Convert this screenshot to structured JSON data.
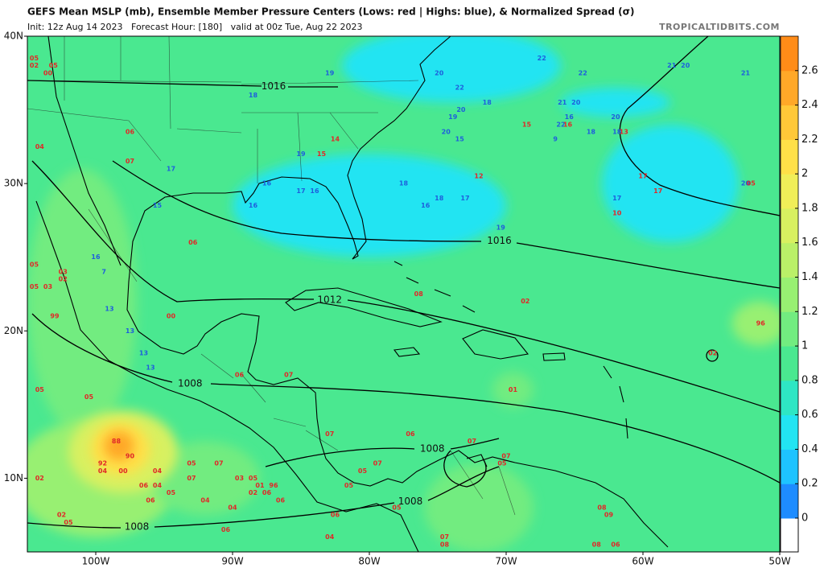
{
  "header": {
    "title": "GEFS Mean MSLP (mb), Ensemble Member Pressure Centers (Lows: red | Highs: blue), & Normalized Spread (σ)",
    "subtitle": "Init: 12z Aug 14 2023   Forecast Hour: [180]   valid at 00z Tue, Aug 22 2023",
    "credit": "TROPICALTIDBITS.COM"
  },
  "map": {
    "xlim": [
      -105,
      -50
    ],
    "ylim": [
      5,
      40
    ],
    "xticks": [
      {
        "value": -100,
        "label": "100W"
      },
      {
        "value": -90,
        "label": "90W"
      },
      {
        "value": -80,
        "label": "80W"
      },
      {
        "value": -70,
        "label": "70W"
      },
      {
        "value": -60,
        "label": "60W"
      },
      {
        "value": -50,
        "label": "50W"
      }
    ],
    "yticks": [
      {
        "value": 10,
        "label": "10N"
      },
      {
        "value": 20,
        "label": "20N"
      },
      {
        "value": 30,
        "label": "30N"
      },
      {
        "value": 40,
        "label": "40N"
      }
    ],
    "background_spread": 0.8,
    "spread_areas": [
      {
        "lon": -80,
        "lat": 28.5,
        "rx": 10,
        "ry": 3.5,
        "value": 0.5
      },
      {
        "lon": -74,
        "lat": 38,
        "rx": 8,
        "ry": 2.5,
        "value": 0.5
      },
      {
        "lon": -62,
        "lat": 35.5,
        "rx": 4,
        "ry": 1,
        "value": 0.5
      },
      {
        "lon": -58,
        "lat": 30,
        "rx": 5,
        "ry": 4,
        "value": 0.5
      },
      {
        "lon": -101,
        "lat": 22,
        "rx": 4,
        "ry": 9,
        "value": 1.0
      },
      {
        "lon": -100,
        "lat": 10,
        "rx": 6,
        "ry": 4,
        "value": 1.2
      },
      {
        "lon": -92,
        "lat": 10,
        "rx": 4,
        "ry": 2.5,
        "value": 1.0
      },
      {
        "lon": -98,
        "lat": 11.8,
        "rx": 4,
        "ry": 2.8,
        "value": 1.6
      },
      {
        "lon": -98.2,
        "lat": 12,
        "rx": 2.2,
        "ry": 1.8,
        "value": 2.0
      },
      {
        "lon": -98.3,
        "lat": 12.2,
        "rx": 1.1,
        "ry": 1,
        "value": 2.4
      },
      {
        "lon": -51.5,
        "lat": 20.5,
        "rx": 2,
        "ry": 1.5,
        "value": 1.2
      },
      {
        "lon": -72,
        "lat": 8,
        "rx": 4,
        "ry": 3,
        "value": 1.0
      },
      {
        "lon": -69.5,
        "lat": 16,
        "rx": 1.5,
        "ry": 1.2,
        "value": 1.0
      }
    ],
    "isobar_labels": [
      {
        "label": 1016,
        "lon": -87.0,
        "lat": 36.6
      },
      {
        "label": 1016,
        "lon": -70.5,
        "lat": 26.1
      },
      {
        "label": 1012,
        "lon": -82.9,
        "lat": 22.1
      },
      {
        "label": 1008,
        "lon": -93.1,
        "lat": 16.4
      },
      {
        "label": 1008,
        "lon": -75.4,
        "lat": 12.0
      },
      {
        "label": 1008,
        "lon": -77.0,
        "lat": 8.4
      },
      {
        "label": 1008,
        "lon": -97.0,
        "lat": 6.7
      }
    ],
    "high_color": "#1e5fdc",
    "low_color": "#e02828",
    "highs": [
      [
        -67.4,
        38.5,
        "22"
      ],
      [
        -64.4,
        37.5,
        "22"
      ],
      [
        -57.9,
        38.0,
        "21"
      ],
      [
        -56.9,
        38.0,
        "20"
      ],
      [
        -52.5,
        37.5,
        "21"
      ],
      [
        -74.9,
        37.5,
        "20"
      ],
      [
        -82.9,
        37.5,
        "19"
      ],
      [
        -88.5,
        36.0,
        "18"
      ],
      [
        -73.4,
        36.5,
        "22"
      ],
      [
        -71.4,
        35.5,
        "18"
      ],
      [
        -73.3,
        35.0,
        "20"
      ],
      [
        -73.9,
        34.5,
        "19"
      ],
      [
        -74.4,
        33.5,
        "20"
      ],
      [
        -73.4,
        33.0,
        "15"
      ],
      [
        -65.9,
        35.5,
        "21"
      ],
      [
        -64.9,
        35.5,
        "20"
      ],
      [
        -65.4,
        34.5,
        "16"
      ],
      [
        -66.0,
        34.0,
        "22"
      ],
      [
        -63.8,
        33.5,
        "18"
      ],
      [
        -66.4,
        33.0,
        "9"
      ],
      [
        -62.0,
        34.5,
        "20"
      ],
      [
        -61.9,
        33.5,
        "18"
      ],
      [
        -85.0,
        32.0,
        "19"
      ],
      [
        -94.5,
        31.0,
        "17"
      ],
      [
        -87.5,
        30.0,
        "16"
      ],
      [
        -85.0,
        29.5,
        "17"
      ],
      [
        -84.0,
        29.5,
        "16"
      ],
      [
        -88.5,
        28.5,
        "16"
      ],
      [
        -95.5,
        28.5,
        "15"
      ],
      [
        -77.5,
        30.0,
        "18"
      ],
      [
        -74.9,
        29.0,
        "18"
      ],
      [
        -73.0,
        29.0,
        "17"
      ],
      [
        -75.9,
        28.5,
        "16"
      ],
      [
        -70.4,
        27.0,
        "19"
      ],
      [
        -61.9,
        29.0,
        "17"
      ],
      [
        -100.0,
        25.0,
        "16"
      ],
      [
        -99.4,
        24.0,
        "7"
      ],
      [
        -99.0,
        21.5,
        "13"
      ],
      [
        -97.5,
        20.0,
        "13"
      ],
      [
        -96.5,
        18.5,
        "13"
      ],
      [
        -96.0,
        17.5,
        "13"
      ],
      [
        -52.5,
        30.0,
        "20"
      ]
    ],
    "lows": [
      [
        -104.5,
        38.5,
        "05"
      ],
      [
        -104.5,
        38.0,
        "02"
      ],
      [
        -103.1,
        38.0,
        "05"
      ],
      [
        -103.5,
        37.5,
        "00"
      ],
      [
        -104.1,
        32.5,
        "04"
      ],
      [
        -97.5,
        33.5,
        "06"
      ],
      [
        -97.5,
        31.5,
        "07"
      ],
      [
        -82.5,
        33.0,
        "14"
      ],
      [
        -83.5,
        32.0,
        "15"
      ],
      [
        -72.0,
        30.5,
        "12"
      ],
      [
        -68.5,
        34.0,
        "15"
      ],
      [
        -65.5,
        34.0,
        "16"
      ],
      [
        -61.4,
        33.5,
        "13"
      ],
      [
        -60.0,
        30.5,
        "17"
      ],
      [
        -58.9,
        29.5,
        "17"
      ],
      [
        -61.9,
        28.0,
        "10"
      ],
      [
        -52.1,
        30.0,
        "05"
      ],
      [
        -92.9,
        26.0,
        "06"
      ],
      [
        -104.5,
        24.5,
        "05"
      ],
      [
        -102.4,
        24.0,
        "03"
      ],
      [
        -102.4,
        23.5,
        "02"
      ],
      [
        -104.5,
        23.0,
        "05"
      ],
      [
        -103.5,
        23.0,
        "03"
      ],
      [
        -76.4,
        22.5,
        "08"
      ],
      [
        -68.6,
        22.0,
        "02"
      ],
      [
        -94.5,
        21.0,
        "00"
      ],
      [
        -103.0,
        21.0,
        "99"
      ],
      [
        -51.4,
        20.5,
        "96"
      ],
      [
        -54.9,
        18.5,
        "02"
      ],
      [
        -85.9,
        17.0,
        "07"
      ],
      [
        -89.5,
        17.0,
        "06"
      ],
      [
        -69.5,
        16.0,
        "01"
      ],
      [
        -104.1,
        16.0,
        "05"
      ],
      [
        -100.5,
        15.5,
        "05"
      ],
      [
        -98.5,
        12.5,
        "88"
      ],
      [
        -97.5,
        11.5,
        "90"
      ],
      [
        -99.5,
        11.0,
        "92"
      ],
      [
        -99.5,
        10.5,
        "04"
      ],
      [
        -98.0,
        10.5,
        "00"
      ],
      [
        -95.5,
        10.5,
        "04"
      ],
      [
        -93.0,
        11.0,
        "05"
      ],
      [
        -91.0,
        11.0,
        "07"
      ],
      [
        -82.9,
        13.0,
        "07"
      ],
      [
        -77.0,
        13.0,
        "06"
      ],
      [
        -79.4,
        11.0,
        "07"
      ],
      [
        -80.5,
        10.5,
        "05"
      ],
      [
        -72.5,
        12.5,
        "07"
      ],
      [
        -70.0,
        11.5,
        "07"
      ],
      [
        -70.3,
        11.0,
        "05"
      ],
      [
        -104.1,
        10.0,
        "02"
      ],
      [
        -96.5,
        9.5,
        "06"
      ],
      [
        -95.5,
        9.5,
        "04"
      ],
      [
        -94.5,
        9.0,
        "05"
      ],
      [
        -93.0,
        10.0,
        "07"
      ],
      [
        -89.5,
        10.0,
        "03"
      ],
      [
        -88.5,
        10.0,
        "05"
      ],
      [
        -88.0,
        9.5,
        "01"
      ],
      [
        -87.0,
        9.5,
        "96"
      ],
      [
        -88.5,
        9.0,
        "02"
      ],
      [
        -87.5,
        9.0,
        "06"
      ],
      [
        -81.5,
        9.5,
        "05"
      ],
      [
        -96.0,
        8.5,
        "06"
      ],
      [
        -92.0,
        8.5,
        "04"
      ],
      [
        -86.5,
        8.5,
        "06"
      ],
      [
        -90.0,
        8.0,
        "04"
      ],
      [
        -82.5,
        7.5,
        "06"
      ],
      [
        -78.0,
        8.0,
        "05"
      ],
      [
        -102.5,
        7.5,
        "02"
      ],
      [
        -102.0,
        7.0,
        "05"
      ],
      [
        -63.0,
        8.0,
        "08"
      ],
      [
        -62.5,
        7.5,
        "09"
      ],
      [
        -90.5,
        6.5,
        "06"
      ],
      [
        -82.9,
        6.0,
        "04"
      ],
      [
        -74.5,
        6.0,
        "07"
      ],
      [
        -74.5,
        5.5,
        "08"
      ],
      [
        -63.4,
        5.5,
        "08"
      ],
      [
        -62.0,
        5.5,
        "06"
      ]
    ]
  },
  "colorbar": {
    "clim": [
      0,
      2.8
    ],
    "ticks": [
      0,
      0.2,
      0.4,
      0.6,
      0.8,
      1,
      1.2,
      1.4,
      1.6,
      1.8,
      2,
      2.2,
      2.4,
      2.6
    ],
    "colors": [
      "#1e8cff",
      "#1ec3ff",
      "#22e4f2",
      "#2ee6c4",
      "#4ae890",
      "#72ec80",
      "#98f072",
      "#baf068",
      "#d8f060",
      "#f0ee58",
      "#ffe048",
      "#ffc838",
      "#ffa828",
      "#ff8c18"
    ]
  }
}
